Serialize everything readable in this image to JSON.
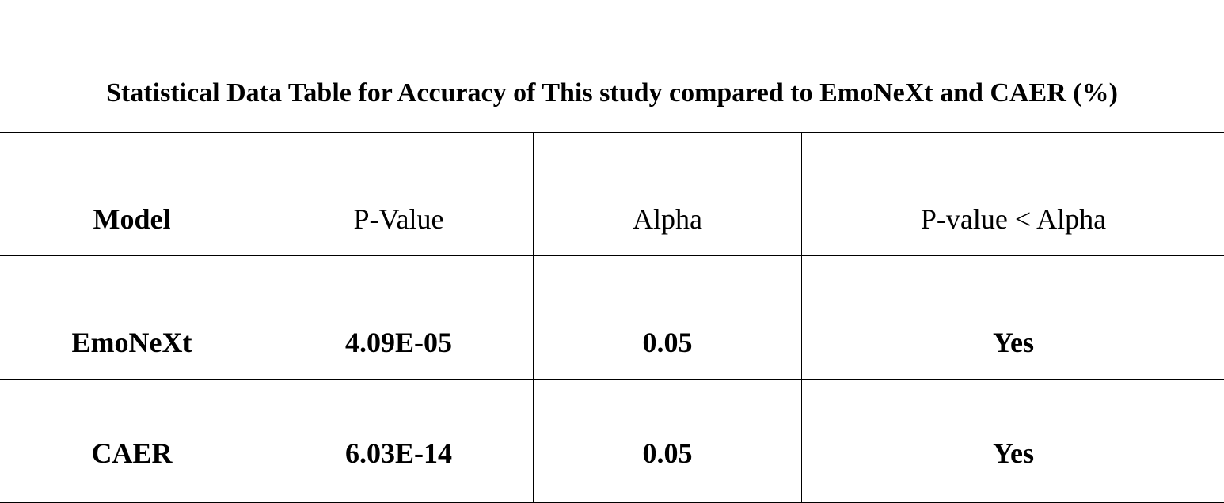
{
  "title": "Statistical Data Table for Accuracy of This study compared to EmoNeXt and CAER (%)",
  "table": {
    "headers": [
      "Model",
      "P-Value",
      "Alpha",
      "P-value < Alpha"
    ],
    "rows": [
      [
        "EmoNeXt",
        "4.09E-05",
        "0.05",
        "Yes"
      ],
      [
        "CAER",
        "6.03E-14",
        "0.05",
        "Yes"
      ]
    ]
  }
}
